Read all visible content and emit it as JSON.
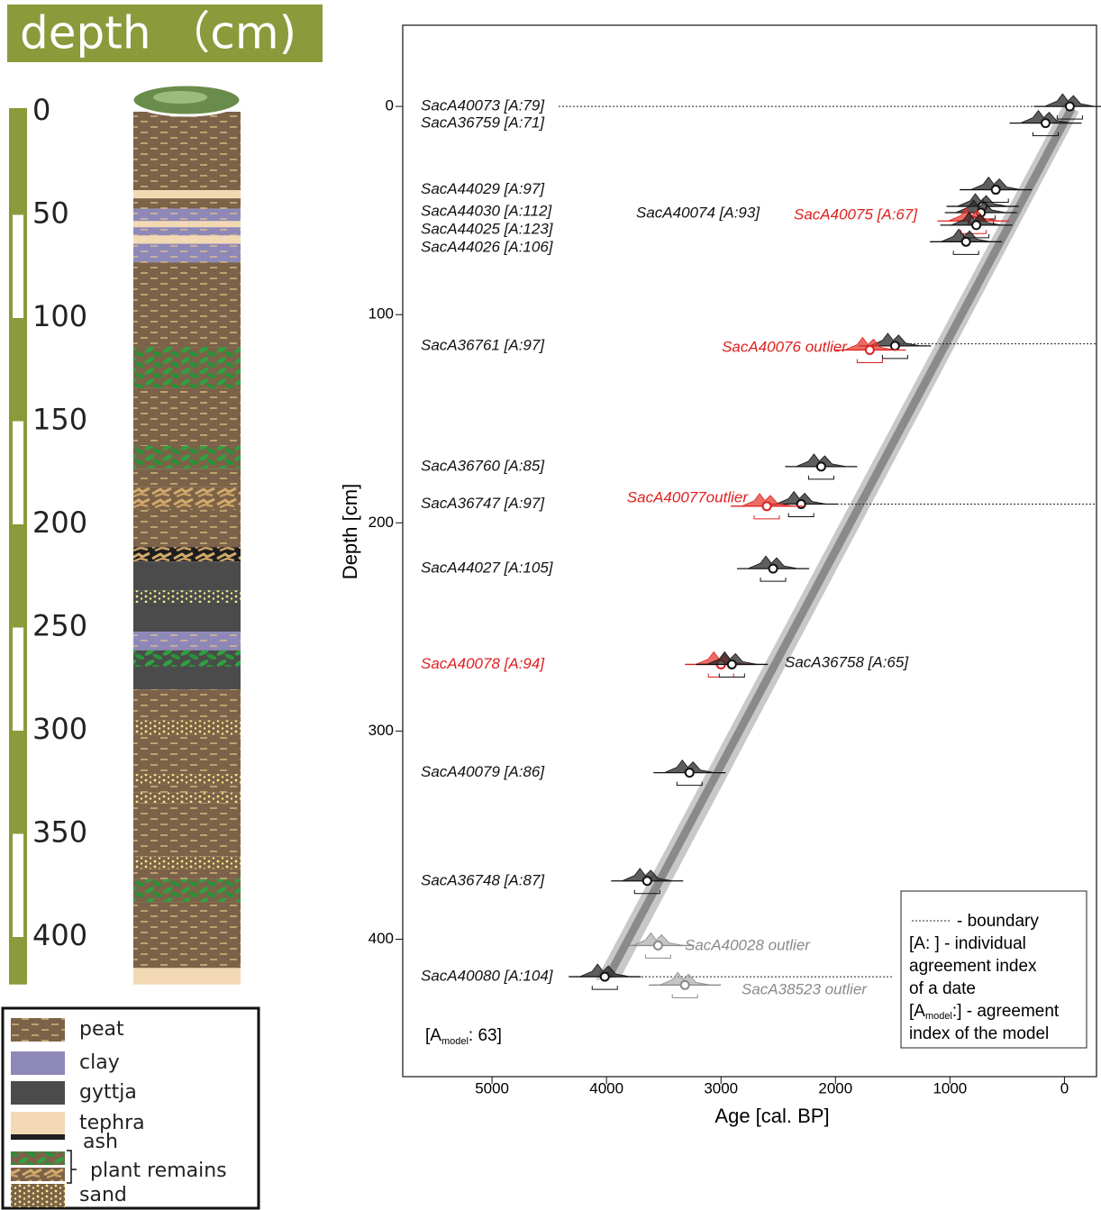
{
  "core_panel": {
    "title": "depth （cm)",
    "depth_ticks": [
      0,
      50,
      100,
      150,
      200,
      250,
      300,
      350,
      400
    ],
    "layers": [
      {
        "top": 0,
        "bottom": 38,
        "color": "#7b6248",
        "pattern": "dashes"
      },
      {
        "top": 38,
        "bottom": 42,
        "color": "#f3d9b3",
        "pattern": "none"
      },
      {
        "top": 42,
        "bottom": 47,
        "color": "#7b6248",
        "pattern": "dashes"
      },
      {
        "top": 47,
        "bottom": 53,
        "color": "#8e88b8",
        "pattern": "dashes"
      },
      {
        "top": 53,
        "bottom": 56,
        "color": "#f3d9b3",
        "pattern": "none"
      },
      {
        "top": 56,
        "bottom": 60,
        "color": "#8e88b8",
        "pattern": "dashes"
      },
      {
        "top": 60,
        "bottom": 64,
        "color": "#f3d9b3",
        "pattern": "none"
      },
      {
        "top": 64,
        "bottom": 73,
        "color": "#8e88b8",
        "pattern": "dashes"
      },
      {
        "top": 73,
        "bottom": 114,
        "color": "#7b6248",
        "pattern": "dashes"
      },
      {
        "top": 114,
        "bottom": 134,
        "color": "#7b6248",
        "pattern": "leaves"
      },
      {
        "top": 134,
        "bottom": 162,
        "color": "#7b6248",
        "pattern": "dashes"
      },
      {
        "top": 162,
        "bottom": 173,
        "color": "#7b6248",
        "pattern": "leaves"
      },
      {
        "top": 173,
        "bottom": 182,
        "color": "#7b6248",
        "pattern": "dashes"
      },
      {
        "top": 182,
        "bottom": 193,
        "color": "#7b6248",
        "pattern": "twigs"
      },
      {
        "top": 193,
        "bottom": 211,
        "color": "#7b6248",
        "pattern": "dashes"
      },
      {
        "top": 211,
        "bottom": 218,
        "color": "#1e1e1e",
        "pattern": "twigs"
      },
      {
        "top": 218,
        "bottom": 232,
        "color": "#4b4b4b",
        "pattern": "none"
      },
      {
        "top": 232,
        "bottom": 238,
        "color": "#4b4b4b",
        "pattern": "dots"
      },
      {
        "top": 238,
        "bottom": 252,
        "color": "#4b4b4b",
        "pattern": "none"
      },
      {
        "top": 252,
        "bottom": 261,
        "color": "#8e88b8",
        "pattern": "dashes"
      },
      {
        "top": 261,
        "bottom": 269,
        "color": "#4b4b4b",
        "pattern": "leaves"
      },
      {
        "top": 269,
        "bottom": 280,
        "color": "#4b4b4b",
        "pattern": "none"
      },
      {
        "top": 280,
        "bottom": 295,
        "color": "#7b6248",
        "pattern": "dashes"
      },
      {
        "top": 295,
        "bottom": 302,
        "color": "#7b6248",
        "pattern": "dots"
      },
      {
        "top": 302,
        "bottom": 321,
        "color": "#7b6248",
        "pattern": "dashes"
      },
      {
        "top": 321,
        "bottom": 326,
        "color": "#7b6248",
        "pattern": "dots"
      },
      {
        "top": 326,
        "bottom": 330,
        "color": "#7b6248",
        "pattern": "dashes"
      },
      {
        "top": 330,
        "bottom": 335,
        "color": "#7b6248",
        "pattern": "dots"
      },
      {
        "top": 335,
        "bottom": 361,
        "color": "#7b6248",
        "pattern": "dashes"
      },
      {
        "top": 361,
        "bottom": 367,
        "color": "#7b6248",
        "pattern": "dots"
      },
      {
        "top": 367,
        "bottom": 372,
        "color": "#7b6248",
        "pattern": "dashes"
      },
      {
        "top": 372,
        "bottom": 383,
        "color": "#7b6248",
        "pattern": "leaves"
      },
      {
        "top": 383,
        "bottom": 415,
        "color": "#7b6248",
        "pattern": "dashes"
      },
      {
        "top": 415,
        "bottom": 423,
        "color": "#f3d9b3",
        "pattern": "none"
      }
    ],
    "legend": [
      {
        "label": "peat",
        "swatches": [
          {
            "color": "#7b6248",
            "pattern": "dashes"
          }
        ]
      },
      {
        "label": "clay",
        "swatches": [
          {
            "color": "#8e88b8",
            "pattern": "none"
          }
        ]
      },
      {
        "label": "gyttja",
        "swatches": [
          {
            "color": "#4b4b4b",
            "pattern": "none"
          }
        ]
      },
      {
        "label": "tephra",
        "swatches": [
          {
            "color": "#f3d9b3",
            "pattern": "none"
          }
        ]
      },
      {
        "label": "ash",
        "swatches": [
          {
            "color": "#1e1e1e",
            "pattern": "none"
          }
        ]
      },
      {
        "label": "plant remains",
        "swatches": [
          {
            "color": "#7b6248",
            "pattern": "leaves"
          },
          {
            "color": "#7b6248",
            "pattern": "twigs"
          }
        ]
      },
      {
        "label": "sand",
        "swatches": [
          {
            "color": "#7b6248",
            "pattern": "dots"
          }
        ]
      }
    ]
  },
  "chart_data": {
    "type": "age-depth",
    "x_label": "Age [cal. BP]",
    "y_label": "Depth [cm]",
    "xlim": [
      5780,
      -280
    ],
    "ylim": [
      -39,
      466
    ],
    "xticks": [
      5000,
      4000,
      3000,
      2000,
      1000,
      0
    ],
    "yticks": [
      0,
      100,
      200,
      300,
      400
    ],
    "boundaries": [
      0,
      114,
      191,
      418
    ],
    "samples": [
      {
        "label": "SacA40073 [A:79]",
        "depth": 0,
        "age": -47,
        "color": "#111111"
      },
      {
        "label": "SacA36759 [A:71]",
        "depth": 8,
        "age": 165,
        "color": "#111111"
      },
      {
        "label": "SacA44029 [A:97]",
        "depth": 40,
        "age": 600,
        "color": "#111111"
      },
      {
        "label": "SacA44030 [A:112]",
        "depth": 48,
        "age": 715,
        "color": "#111111"
      },
      {
        "label": "SacA40074 [A:93]",
        "depth": 51,
        "age": 730,
        "color": "#111111"
      },
      {
        "label": "SacA40075 [A:67]",
        "depth": 55,
        "age": 795,
        "color": "#e02020"
      },
      {
        "label": "SacA44025 [A:123]",
        "depth": 57,
        "age": 770,
        "color": "#111111"
      },
      {
        "label": "SacA44026 [A:106]",
        "depth": 65,
        "age": 860,
        "color": "#111111"
      },
      {
        "label": "SacA36761 [A:97]",
        "depth": 115,
        "age": 1480,
        "color": "#111111"
      },
      {
        "label": "SacA40076 outlier",
        "depth": 117,
        "age": 1700,
        "color": "#e02020"
      },
      {
        "label": "SacA36760 [A:85]",
        "depth": 173,
        "age": 2125,
        "color": "#111111"
      },
      {
        "label": "SacA36747 [A:97]",
        "depth": 191,
        "age": 2300,
        "color": "#111111"
      },
      {
        "label": "SacA40077outlier",
        "depth": 192,
        "age": 2600,
        "color": "#e02020"
      },
      {
        "label": "SacA44027 [A:105]",
        "depth": 222,
        "age": 2545,
        "color": "#111111"
      },
      {
        "label": "SacA40078 [A:94]",
        "depth": 268,
        "age": 3000,
        "color": "#e02020"
      },
      {
        "label": "SacA36758 [A:65]",
        "depth": 268,
        "age": 2905,
        "color": "#111111"
      },
      {
        "label": "SacA40079 [A:86]",
        "depth": 320,
        "age": 3275,
        "color": "#111111"
      },
      {
        "label": "SacA36748 [A:87]",
        "depth": 372,
        "age": 3645,
        "color": "#111111"
      },
      {
        "label": "SacA40028 outlier",
        "depth": 403,
        "age": 3550,
        "color": "#8a8a8a"
      },
      {
        "label": "SacA40080 [A:104]",
        "depth": 418,
        "age": 4015,
        "color": "#111111"
      },
      {
        "label": "SacA38523 outlier",
        "depth": 422,
        "age": 3315,
        "color": "#8a8a8a"
      }
    ],
    "model_index": {
      "prefix": "[A",
      "subscript": "model",
      "suffix": ": 63]"
    },
    "legend": {
      "boundary": "- boundary",
      "individual": [
        "[A: ] - individual",
        "agreement index",
        "of a date"
      ],
      "model": {
        "prefix": "[A",
        "subscript": "model",
        "suffix": ":] - agreement",
        "line2": "index of the model"
      }
    }
  }
}
